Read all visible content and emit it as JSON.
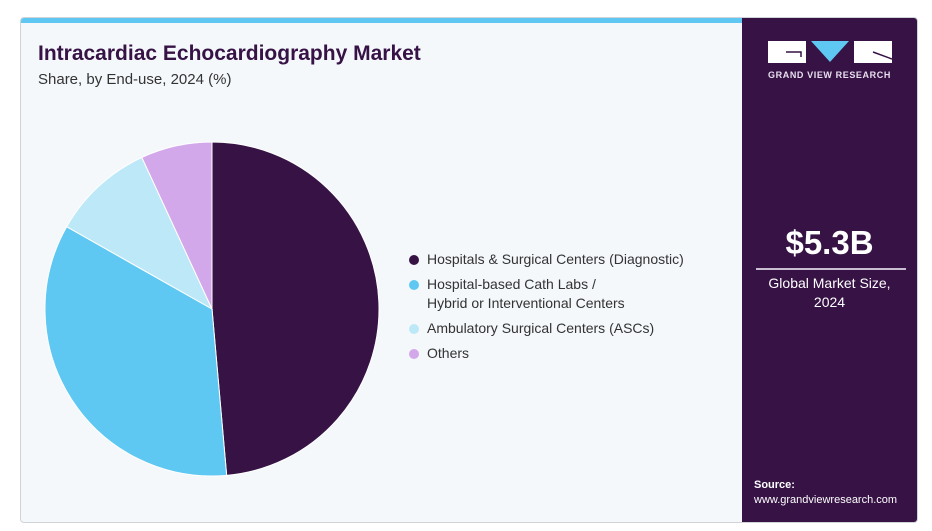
{
  "header": {
    "title": "Intracardiac Echocardiography Market",
    "subtitle": "Share, by End-use, 2024 (%)"
  },
  "chart_data": {
    "type": "pie",
    "title": "Intracardiac Echocardiography Market",
    "subtitle": "Share, by End-use, 2024 (%)",
    "categories": [
      "Hospitals & Surgical Centers (Diagnostic)",
      "Hospital-based Cath Labs / Hybrid or Interventional Centers",
      "Ambulatory Surgical Centers (ASCs)",
      "Others"
    ],
    "values": [
      48.6,
      34.6,
      9.9,
      6.9
    ],
    "colors": [
      "#361245",
      "#5ec8f2",
      "#bde8f8",
      "#d3a8ea"
    ],
    "legend_position": "right"
  },
  "legend": [
    {
      "label_lines": [
        "Hospitals & Surgical Centers (Diagnostic)"
      ]
    },
    {
      "label_lines": [
        "Hospital-based Cath Labs /",
        "Hybrid or Interventional Centers"
      ]
    },
    {
      "label_lines": [
        "Ambulatory Surgical Centers (ASCs)"
      ]
    },
    {
      "label_lines": [
        "Others"
      ]
    }
  ],
  "sidebar": {
    "brand": "GRAND VIEW RESEARCH",
    "market_size": "$5.3B",
    "market_size_label_1": "Global Market Size,",
    "market_size_label_2": "2024",
    "source_label": "Source:",
    "source_url": "www.grandviewresearch.com"
  }
}
